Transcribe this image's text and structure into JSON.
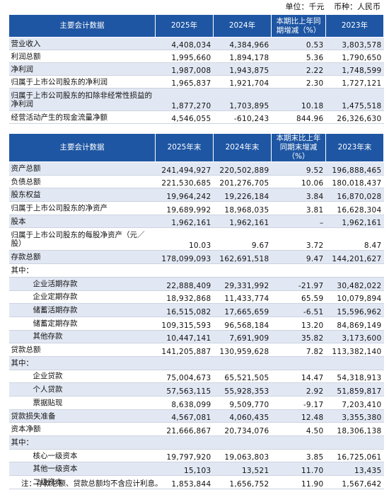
{
  "unit": {
    "unit_label": "单位：千元",
    "currency_label": "币种：人民币"
  },
  "table1": {
    "headers": [
      "主要会计数据",
      "2025年",
      "2024年",
      "本期比上年同期增减（%）",
      "2023年"
    ],
    "rows": [
      {
        "label": "营业收入",
        "v2025": "4,408,034",
        "v2024": "4,384,966",
        "change": "0.53",
        "v2023": "3,803,578"
      },
      {
        "label": "利润总额",
        "v2025": "1,995,660",
        "v2024": "1,894,178",
        "change": "5.36",
        "v2023": "1,790,650"
      },
      {
        "label": "净利润",
        "v2025": "1,987,008",
        "v2024": "1,943,875",
        "change": "2.22",
        "v2023": "1,748,599"
      },
      {
        "label": "归属于上市公司股东的净利润",
        "v2025": "1,965,837",
        "v2024": "1,921,704",
        "change": "2.30",
        "v2023": "1,727,121"
      },
      {
        "label": "归属于上市公司股东的扣除非经常性损益的净利润",
        "v2025": "1,877,270",
        "v2024": "1,703,895",
        "change": "10.18",
        "v2023": "1,475,518"
      },
      {
        "label": "经营活动产生的现金流量净额",
        "v2025": "4,546,055",
        "v2024": "-610,243",
        "change": "844.96",
        "v2023": "26,326,630"
      }
    ]
  },
  "table2": {
    "headers": [
      "主要会计数据",
      "2025年末",
      "2024年末",
      "本期末比上年同期末增减（%）",
      "2023年末"
    ],
    "rows": [
      {
        "label": "资产总额",
        "v2025": "241,494,927",
        "v2024": "220,502,889",
        "change": "9.52",
        "v2023": "196,888,465"
      },
      {
        "label": "负债总额",
        "v2025": "221,530,685",
        "v2024": "201,276,705",
        "change": "10.06",
        "v2023": "180,018,437"
      },
      {
        "label": "股东权益",
        "v2025": "19,964,242",
        "v2024": "19,226,184",
        "change": "3.84",
        "v2023": "16,870,028"
      },
      {
        "label": "归属于上市公司股东的净资产",
        "v2025": "19,689,992",
        "v2024": "18,968,035",
        "change": "3.81",
        "v2023": "16,628,304"
      },
      {
        "label": "股本",
        "v2025": "1,962,161",
        "v2024": "1,962,161",
        "change": "–",
        "v2023": "1,962,161"
      },
      {
        "label": "归属于上市公司股东的每股净资产（元／股）",
        "v2025": "10.03",
        "v2024": "9.67",
        "change": "3.72",
        "v2023": "8.47"
      },
      {
        "label": "存款总额",
        "v2025": "178,099,093",
        "v2024": "162,691,518",
        "change": "9.47",
        "v2023": "144,201,627"
      },
      {
        "label": "其中：",
        "v2025": "",
        "v2024": "",
        "change": "",
        "v2023": ""
      },
      {
        "label": "企业活期存款",
        "v2025": "22,888,409",
        "v2024": "29,331,992",
        "change": "-21.97",
        "v2023": "30,482,022"
      },
      {
        "label": "企业定期存款",
        "v2025": "18,932,868",
        "v2024": "11,433,774",
        "change": "65.59",
        "v2023": "10,079,894"
      },
      {
        "label": "储蓄活期存款",
        "v2025": "16,515,082",
        "v2024": "17,665,659",
        "change": "-6.51",
        "v2023": "15,596,962"
      },
      {
        "label": "储蓄定期存款",
        "v2025": "109,315,593",
        "v2024": "96,568,184",
        "change": "13.20",
        "v2023": "84,869,149"
      },
      {
        "label": "其他存款",
        "v2025": "10,447,141",
        "v2024": "7,691,909",
        "change": "35.82",
        "v2023": "3,173,600"
      },
      {
        "label": "贷款总额",
        "v2025": "141,205,887",
        "v2024": "130,959,628",
        "change": "7.82",
        "v2023": "113,382,140"
      },
      {
        "label": "其中：",
        "v2025": "",
        "v2024": "",
        "change": "",
        "v2023": ""
      },
      {
        "label": "企业贷款",
        "v2025": "75,004,673",
        "v2024": "65,521,505",
        "change": "14.47",
        "v2023": "54,318,913"
      },
      {
        "label": "个人贷款",
        "v2025": "57,563,115",
        "v2024": "55,928,353",
        "change": "2.92",
        "v2023": "51,859,817"
      },
      {
        "label": "票据贴现",
        "v2025": "8,638,099",
        "v2024": "9,509,770",
        "change": "-9.17",
        "v2023": "7,203,410"
      },
      {
        "label": "贷款损失准备",
        "v2025": "4,567,081",
        "v2024": "4,060,435",
        "change": "12.48",
        "v2023": "3,355,380"
      },
      {
        "label": "资本净额",
        "v2025": "21,666,867",
        "v2024": "20,734,076",
        "change": "4.50",
        "v2023": "18,306,138"
      },
      {
        "label": "其中：",
        "v2025": "",
        "v2024": "",
        "change": "",
        "v2023": ""
      },
      {
        "label": "核心一级资本",
        "v2025": "19,797,920",
        "v2024": "19,063,803",
        "change": "3.85",
        "v2023": "16,725,061"
      },
      {
        "label": "其他一级资本",
        "v2025": "15,103",
        "v2024": "13,521",
        "change": "11.70",
        "v2023": "13,435"
      },
      {
        "label": "二级资本",
        "v2025": "1,853,844",
        "v2024": "1,656,752",
        "change": "11.90",
        "v2023": "1,567,642"
      }
    ]
  },
  "note": "注：存款总额、贷款总额均不含应计利息。"
}
